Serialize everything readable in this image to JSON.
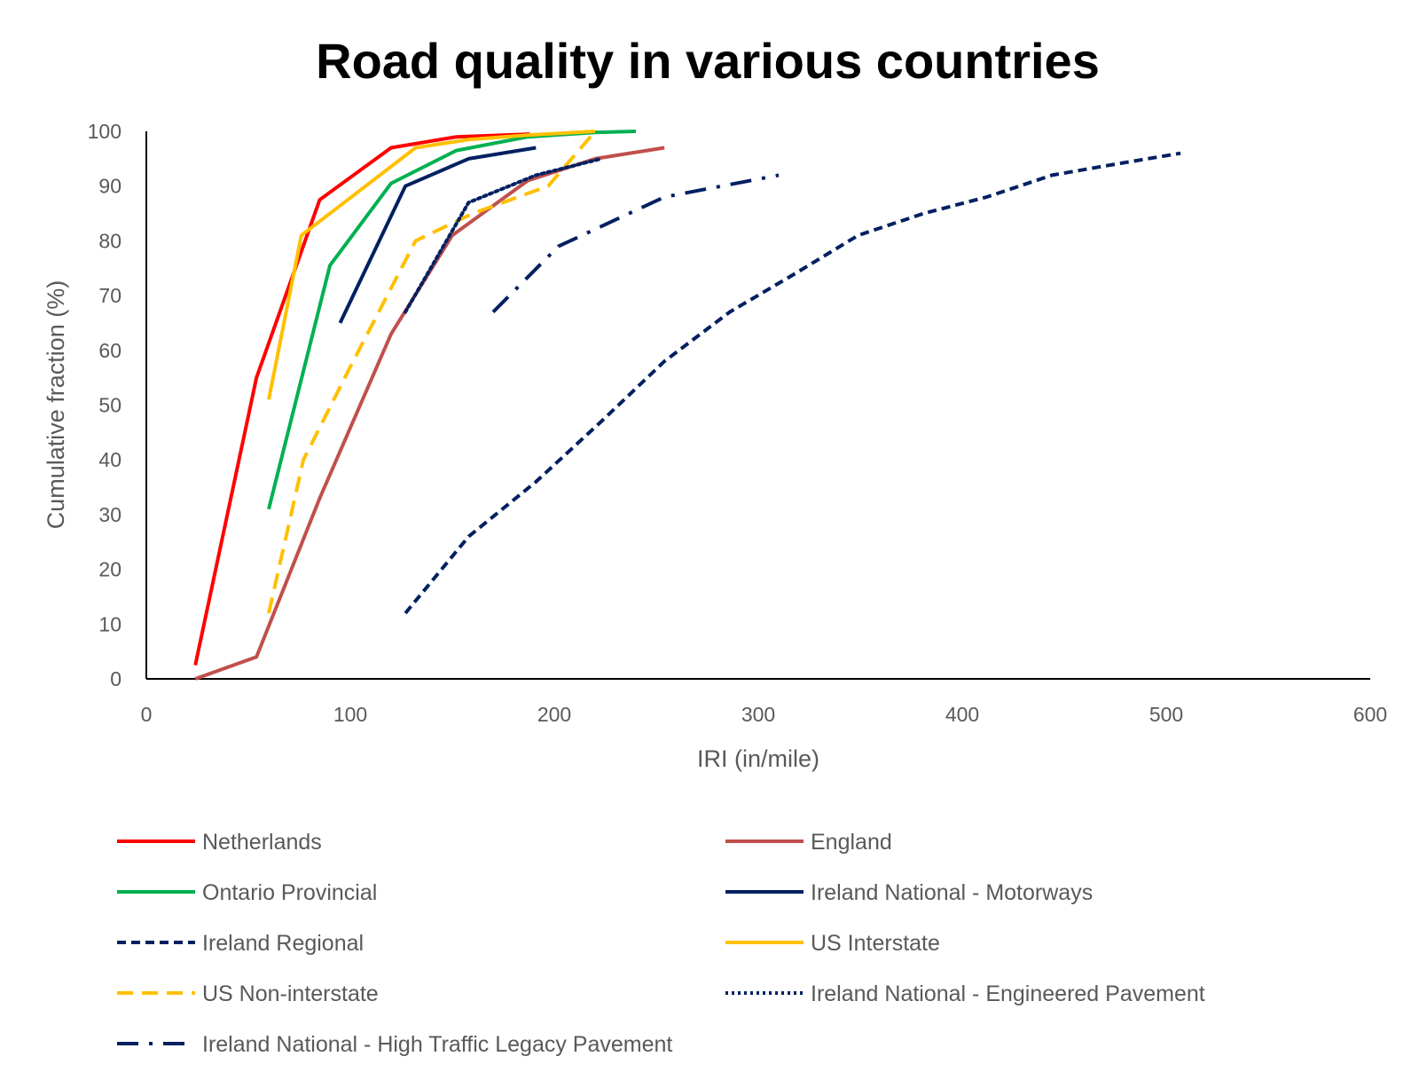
{
  "chart_data": {
    "type": "line",
    "title": "Road quality in various countries",
    "xlabel": "IRI (in/mile)",
    "ylabel": "Cumulative  fraction (%)",
    "xlim": [
      0,
      600
    ],
    "ylim": [
      0,
      100
    ],
    "x_ticks": [
      "0",
      "100",
      "200",
      "300",
      "400",
      "500",
      "600"
    ],
    "y_ticks": [
      "0",
      "10",
      "20",
      "30",
      "40",
      "50",
      "60",
      "70",
      "80",
      "90",
      "100"
    ],
    "grid": false,
    "legend_position": "bottom",
    "series": [
      {
        "name": "Netherlands",
        "color": "#FF0000",
        "style": "solid",
        "points": [
          [
            24,
            2.5
          ],
          [
            54,
            55
          ],
          [
            85,
            87.5
          ],
          [
            120,
            97
          ],
          [
            152,
            99
          ],
          [
            188,
            99.5
          ]
        ]
      },
      {
        "name": "England",
        "color": "#C0504D",
        "style": "solid",
        "points": [
          [
            24,
            0
          ],
          [
            54,
            4
          ],
          [
            85,
            33
          ],
          [
            120,
            63
          ],
          [
            150,
            81
          ],
          [
            187,
            91
          ],
          [
            220,
            95
          ],
          [
            254,
            97
          ]
        ]
      },
      {
        "name": "Ontario Provincial",
        "color": "#00B050",
        "style": "solid",
        "points": [
          [
            60,
            31
          ],
          [
            90,
            75.5
          ],
          [
            120,
            90.5
          ],
          [
            152,
            96.5
          ],
          [
            187,
            99
          ],
          [
            220,
            99.8
          ],
          [
            240,
            100
          ]
        ]
      },
      {
        "name": "Ireland National - Motorways",
        "color": "#002060",
        "style": "solid",
        "points": [
          [
            95,
            65
          ],
          [
            127,
            90
          ],
          [
            158,
            95
          ],
          [
            191,
            97
          ]
        ]
      },
      {
        "name": "Ireland Regional",
        "color": "#002060",
        "style": "dash",
        "points": [
          [
            127,
            12
          ],
          [
            158,
            26
          ],
          [
            191,
            36
          ],
          [
            223,
            47
          ],
          [
            254,
            58
          ],
          [
            286,
            67
          ],
          [
            318,
            74
          ],
          [
            349,
            81
          ],
          [
            381,
            85
          ],
          [
            412,
            88
          ],
          [
            444,
            92
          ],
          [
            475,
            94
          ],
          [
            507,
            96
          ]
        ]
      },
      {
        "name": "US Interstate",
        "color": "#FFC000",
        "style": "solid",
        "points": [
          [
            60,
            51
          ],
          [
            76,
            81
          ],
          [
            132,
            97
          ],
          [
            158,
            98.5
          ],
          [
            187,
            99.3
          ],
          [
            220,
            100
          ]
        ]
      },
      {
        "name": "US Non-interstate",
        "color": "#FFC000",
        "style": "longdash",
        "points": [
          [
            60,
            12
          ],
          [
            77,
            40
          ],
          [
            100,
            57
          ],
          [
            132,
            80
          ],
          [
            160,
            85
          ],
          [
            197,
            90
          ],
          [
            220,
            100
          ]
        ]
      },
      {
        "name": "Ireland National - Engineered Pavement",
        "color": "#002060",
        "style": "dot",
        "points": [
          [
            127,
            67
          ],
          [
            158,
            87
          ],
          [
            191,
            92
          ],
          [
            223,
            95
          ]
        ]
      },
      {
        "name": "Ireland National - High Traffic Legacy Pavement",
        "color": "#002060",
        "style": "longdashdot",
        "points": [
          [
            170,
            67
          ],
          [
            202,
            79
          ],
          [
            254,
            88
          ],
          [
            310,
            92
          ]
        ]
      }
    ]
  }
}
